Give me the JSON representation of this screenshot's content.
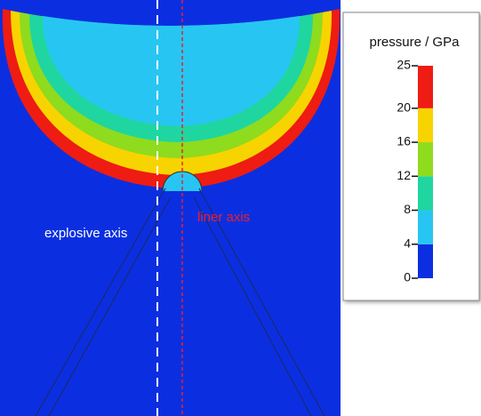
{
  "annotations": {
    "explosive_axis": "explosive axis",
    "liner_axis": "liner axis"
  },
  "colorbar": {
    "title": "pressure / GPa",
    "lim": [
      0,
      25
    ],
    "ticks": [
      0,
      4,
      8,
      12,
      16,
      20,
      25
    ],
    "colors": [
      "#0b2fe0",
      "#27c6f2",
      "#1fd6a0",
      "#8fdb1e",
      "#f7d400",
      "#ee1c12"
    ]
  }
}
